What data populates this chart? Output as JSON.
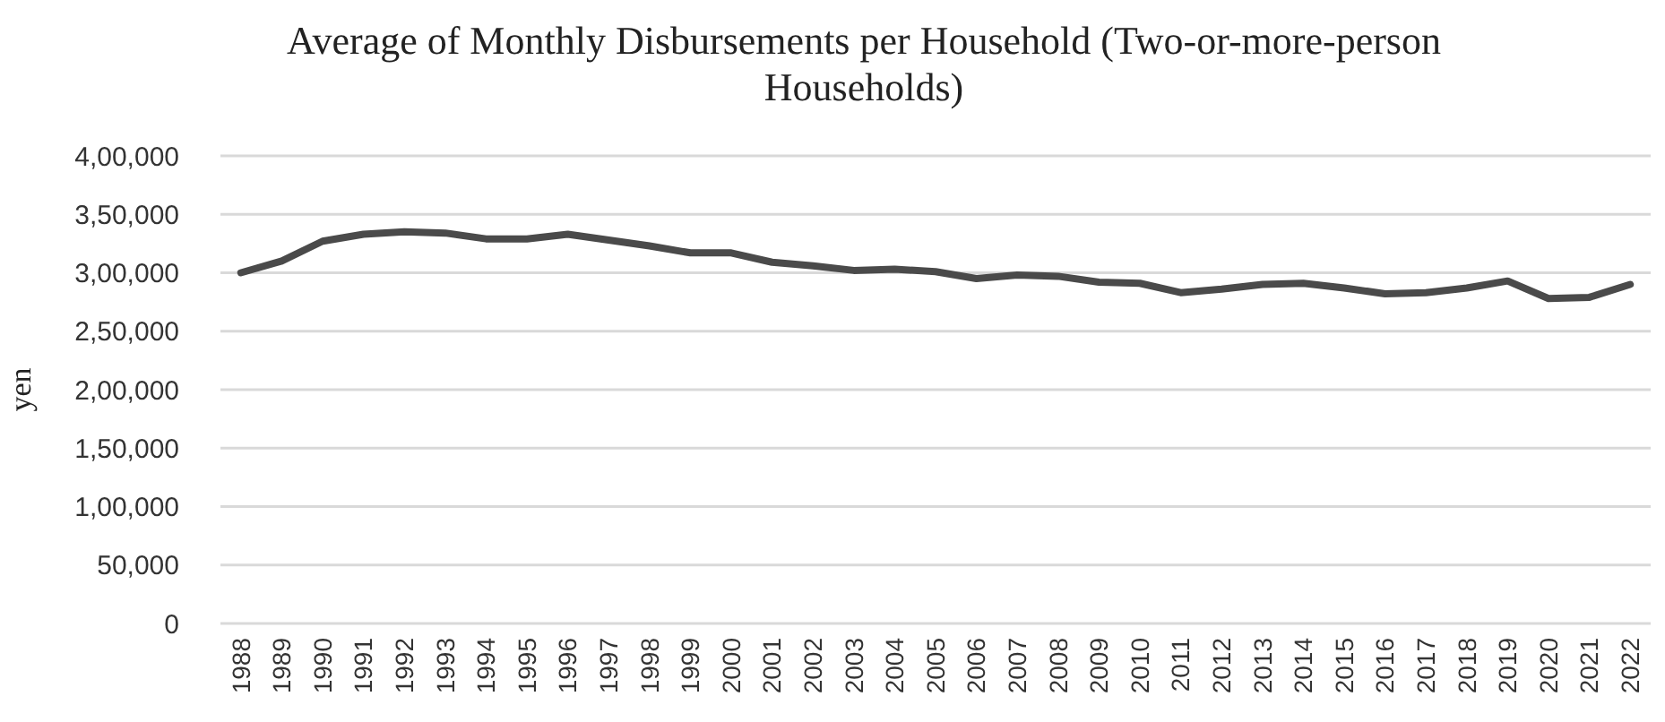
{
  "chart_data": {
    "type": "line",
    "title": "Average of Monthly Disbursements per Household (Two-or-more-person Households)",
    "ylabel": "yen",
    "categories": [
      "1988",
      "1989",
      "1990",
      "1991",
      "1992",
      "1993",
      "1994",
      "1995",
      "1996",
      "1997",
      "1998",
      "1999",
      "2000",
      "2001",
      "2002",
      "2003",
      "2004",
      "2005",
      "2006",
      "2007",
      "2008",
      "2009",
      "2010",
      "2011",
      "2012",
      "2013",
      "2014",
      "2015",
      "2016",
      "2017",
      "2018",
      "2019",
      "2020",
      "2021",
      "2022"
    ],
    "series": [
      {
        "color": "#4a4a4a",
        "values": [
          300000,
          310000,
          327000,
          333000,
          335000,
          334000,
          329000,
          329000,
          333000,
          328000,
          323000,
          317000,
          317000,
          309000,
          306000,
          302000,
          303000,
          301000,
          295000,
          298000,
          297000,
          292000,
          291000,
          283000,
          286000,
          290000,
          291000,
          287000,
          282000,
          283000,
          287000,
          293000,
          278000,
          279000,
          290000
        ]
      }
    ],
    "ylim": [
      0,
      400000
    ],
    "yticks": [
      0,
      {
        "value": 50000,
        "label": "50,000"
      },
      {
        "value": 100000,
        "label": "1,00,000"
      },
      {
        "value": 150000,
        "label": "1,50,000"
      },
      {
        "value": 200000,
        "label": "2,00,000"
      },
      {
        "value": 250000,
        "label": "2,50,000"
      },
      {
        "value": 300000,
        "label": "3,00,000"
      },
      {
        "value": 350000,
        "label": "3,50,000"
      },
      {
        "value": 400000,
        "label": "4,00,000"
      }
    ],
    "grid": "y",
    "marker": "none",
    "line_style": "solid"
  }
}
